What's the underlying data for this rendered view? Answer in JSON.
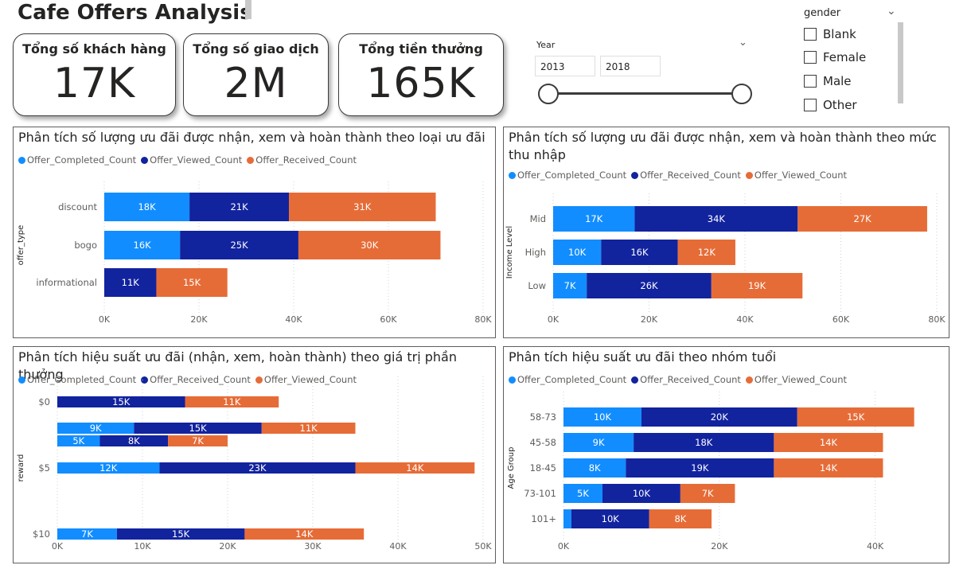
{
  "title": "Cafe Offers Analysis",
  "colors": {
    "completed": "#118DFF",
    "viewed_dark": "#12239E",
    "orange": "#E66C37"
  },
  "kpis": [
    {
      "label": "Tổng số khách hàng",
      "value": "17K"
    },
    {
      "label": "Tổng số giao dịch",
      "value": "2M"
    },
    {
      "label": "Tổng tiền thưởng",
      "value": "165K"
    }
  ],
  "year_slicer": {
    "label": "Year",
    "from": "2013",
    "to": "2018"
  },
  "gender_slicer": {
    "label": "gender",
    "options": [
      "Blank",
      "Female",
      "Male",
      "Other"
    ]
  },
  "chart_data": [
    {
      "type": "bar",
      "title": "Phân tích số lượng ưu đãi được nhận, xem và hoàn thành theo loại ưu đãi",
      "ylabel": "offer_type",
      "categories": [
        "discount",
        "bogo",
        "informational"
      ],
      "series": [
        {
          "name": "Offer_Completed_Count",
          "color": "#118DFF",
          "values": [
            18,
            16,
            0
          ],
          "labels": [
            "18K",
            "16K",
            ""
          ]
        },
        {
          "name": "Offer_Viewed_Count",
          "color": "#12239E",
          "values": [
            21,
            25,
            11
          ],
          "labels": [
            "21K",
            "25K",
            "11K"
          ]
        },
        {
          "name": "Offer_Received_Count",
          "color": "#E66C37",
          "values": [
            31,
            30,
            15
          ],
          "labels": [
            "31K",
            "30K",
            "15K"
          ]
        }
      ],
      "xticks": [
        "0K",
        "20K",
        "40K",
        "60K",
        "80K"
      ],
      "xmax": 80
    },
    {
      "type": "bar",
      "title": "Phân tích số lượng ưu đãi được nhận, xem và hoàn thành theo mức thu nhập",
      "ylabel": "Income Level",
      "categories": [
        "Mid",
        "High",
        "Low"
      ],
      "series": [
        {
          "name": "Offer_Completed_Count",
          "color": "#118DFF",
          "values": [
            17,
            10,
            7
          ],
          "labels": [
            "17K",
            "10K",
            "7K"
          ]
        },
        {
          "name": "Offer_Received_Count",
          "color": "#12239E",
          "values": [
            34,
            16,
            26
          ],
          "labels": [
            "34K",
            "16K",
            "26K"
          ]
        },
        {
          "name": "Offer_Viewed_Count",
          "color": "#E66C37",
          "values": [
            27,
            12,
            19
          ],
          "labels": [
            "27K",
            "12K",
            "19K"
          ]
        }
      ],
      "xticks": [
        "0K",
        "20K",
        "40K",
        "60K",
        "80K"
      ],
      "xmax": 80
    },
    {
      "type": "bar",
      "title": "Phân tích hiệu suất ưu đãi (nhận, xem, hoàn thành) theo giá trị phần thưởng",
      "ylabel": "reward",
      "categories": [
        "$0",
        "",
        "",
        "$5",
        "$10"
      ],
      "series": [
        {
          "name": "Offer_Completed_Count",
          "color": "#118DFF",
          "values": [
            0,
            9,
            5,
            12,
            7
          ],
          "labels": [
            "",
            "9K",
            "5K",
            "12K",
            "7K"
          ]
        },
        {
          "name": "Offer_Received_Count",
          "color": "#12239E",
          "values": [
            15,
            15,
            8,
            23,
            15
          ],
          "labels": [
            "15K",
            "15K",
            "8K",
            "23K",
            "15K"
          ]
        },
        {
          "name": "Offer_Viewed_Count",
          "color": "#E66C37",
          "values": [
            11,
            11,
            7,
            14,
            14
          ],
          "labels": [
            "11K",
            "11K",
            "7K",
            "14K",
            "14K"
          ]
        }
      ],
      "xticks": [
        "0K",
        "10K",
        "20K",
        "30K",
        "40K",
        "50K"
      ],
      "xmax": 50
    },
    {
      "type": "bar",
      "title": "Phân tích hiệu suất ưu đãi theo nhóm tuổi",
      "ylabel": "Age Group",
      "categories": [
        "58-73",
        "45-58",
        "18-45",
        "73-101",
        "101+"
      ],
      "series": [
        {
          "name": "Offer_Completed_Count",
          "color": "#118DFF",
          "values": [
            10,
            9,
            8,
            5,
            1
          ],
          "labels": [
            "10K",
            "9K",
            "8K",
            "5K",
            ""
          ]
        },
        {
          "name": "Offer_Received_Count",
          "color": "#12239E",
          "values": [
            20,
            18,
            19,
            10,
            10
          ],
          "labels": [
            "20K",
            "18K",
            "19K",
            "10K",
            "10K"
          ]
        },
        {
          "name": "Offer_Viewed_Count",
          "color": "#E66C37",
          "values": [
            15,
            14,
            14,
            7,
            8
          ],
          "labels": [
            "15K",
            "14K",
            "14K",
            "7K",
            "8K"
          ]
        }
      ],
      "xticks": [
        "0K",
        "20K",
        "40K"
      ],
      "xmax": 48
    }
  ]
}
